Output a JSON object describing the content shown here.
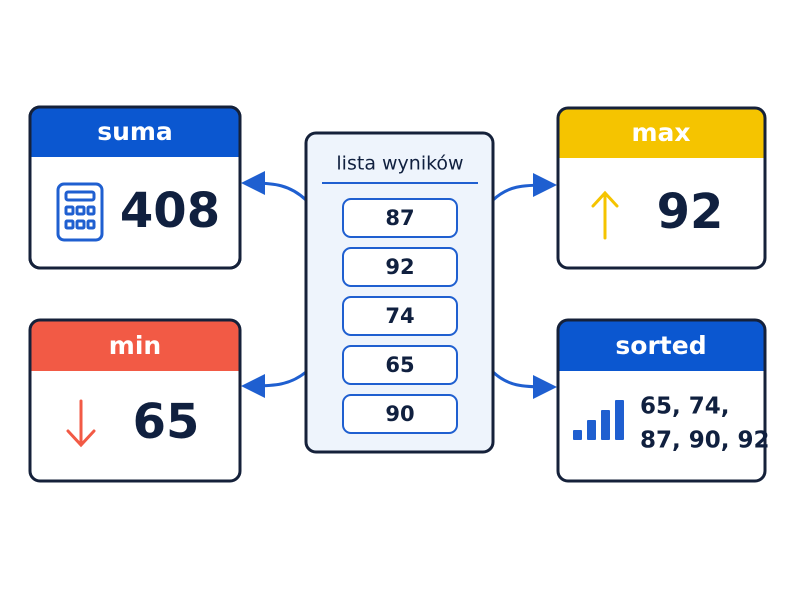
{
  "list": {
    "title": "lista wyników",
    "items": [
      "87",
      "92",
      "74",
      "65",
      "90"
    ]
  },
  "cards": [
    {
      "title": "suma",
      "value": "408"
    },
    {
      "title": "max",
      "value": "92"
    },
    {
      "title": "min",
      "value": "65"
    },
    {
      "title": "sorted",
      "lines": [
        "65, 74,",
        "87, 90, 92"
      ]
    }
  ]
}
